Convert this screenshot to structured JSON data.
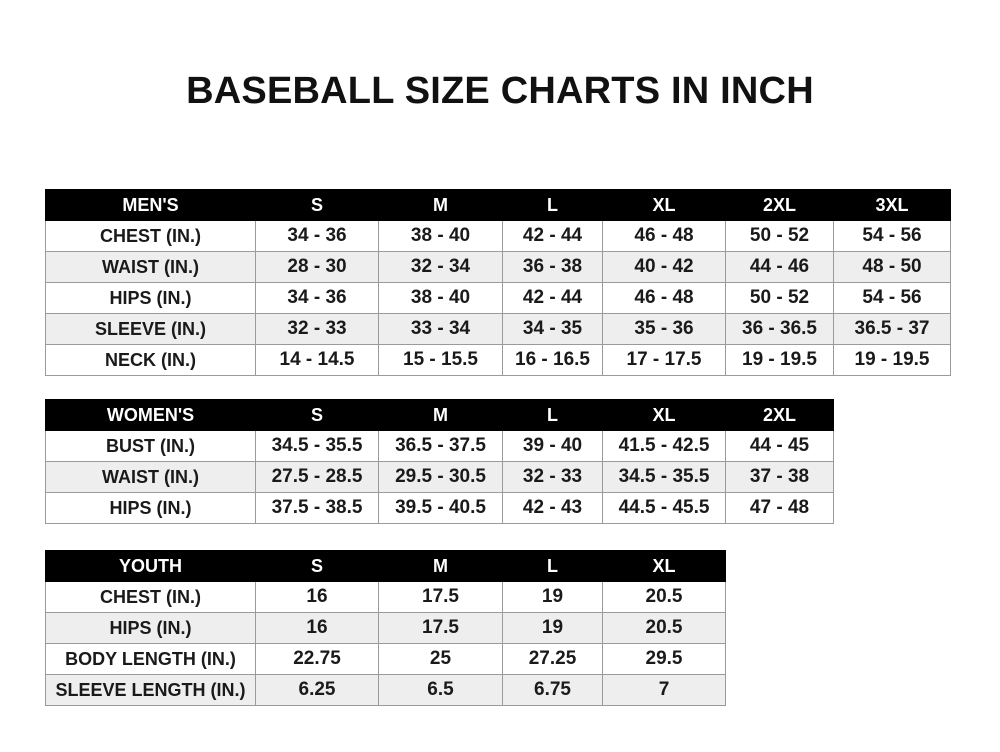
{
  "title": "BASEBALL SIZE CHARTS IN INCH",
  "tables": [
    {
      "headers": [
        "MEN'S",
        "S",
        "M",
        "L",
        "XL",
        "2XL",
        "3XL"
      ],
      "rows": [
        [
          "CHEST (IN.)",
          "34 - 36",
          "38 - 40",
          "42 - 44",
          "46 - 48",
          "50 - 52",
          "54 - 56"
        ],
        [
          "WAIST (IN.)",
          "28 - 30",
          "32 - 34",
          "36 - 38",
          "40 - 42",
          "44 - 46",
          "48 - 50"
        ],
        [
          "HIPS (IN.)",
          "34 - 36",
          "38 - 40",
          "42 - 44",
          "46 - 48",
          "50 - 52",
          "54 - 56"
        ],
        [
          "SLEEVE (IN.)",
          "32 - 33",
          "33 - 34",
          "34 - 35",
          "35 - 36",
          "36 - 36.5",
          "36.5 - 37"
        ],
        [
          "NECK (IN.)",
          "14 - 14.5",
          "15 - 15.5",
          "16 - 16.5",
          "17 - 17.5",
          "19 - 19.5",
          "19 - 19.5"
        ]
      ]
    },
    {
      "headers": [
        "WOMEN'S",
        "S",
        "M",
        "L",
        "XL",
        "2XL"
      ],
      "rows": [
        [
          "BUST (IN.)",
          "34.5 - 35.5",
          "36.5 - 37.5",
          "39 - 40",
          "41.5 - 42.5",
          "44 - 45"
        ],
        [
          "WAIST (IN.)",
          "27.5 - 28.5",
          "29.5 - 30.5",
          "32 - 33",
          "34.5 - 35.5",
          "37 - 38"
        ],
        [
          "HIPS (IN.)",
          "37.5 - 38.5",
          "39.5 - 40.5",
          "42 - 43",
          "44.5 - 45.5",
          "47 - 48"
        ]
      ]
    },
    {
      "headers": [
        "YOUTH",
        "S",
        "M",
        "L",
        "XL"
      ],
      "rows": [
        [
          "CHEST (IN.)",
          "16",
          "17.5",
          "19",
          "20.5"
        ],
        [
          "HIPS (IN.)",
          "16",
          "17.5",
          "19",
          "20.5"
        ],
        [
          "BODY LENGTH (IN.)",
          "22.75",
          "25",
          "27.25",
          "29.5"
        ],
        [
          "SLEEVE LENGTH (IN.)",
          "6.25",
          "6.5",
          "6.75",
          "7"
        ]
      ]
    }
  ]
}
